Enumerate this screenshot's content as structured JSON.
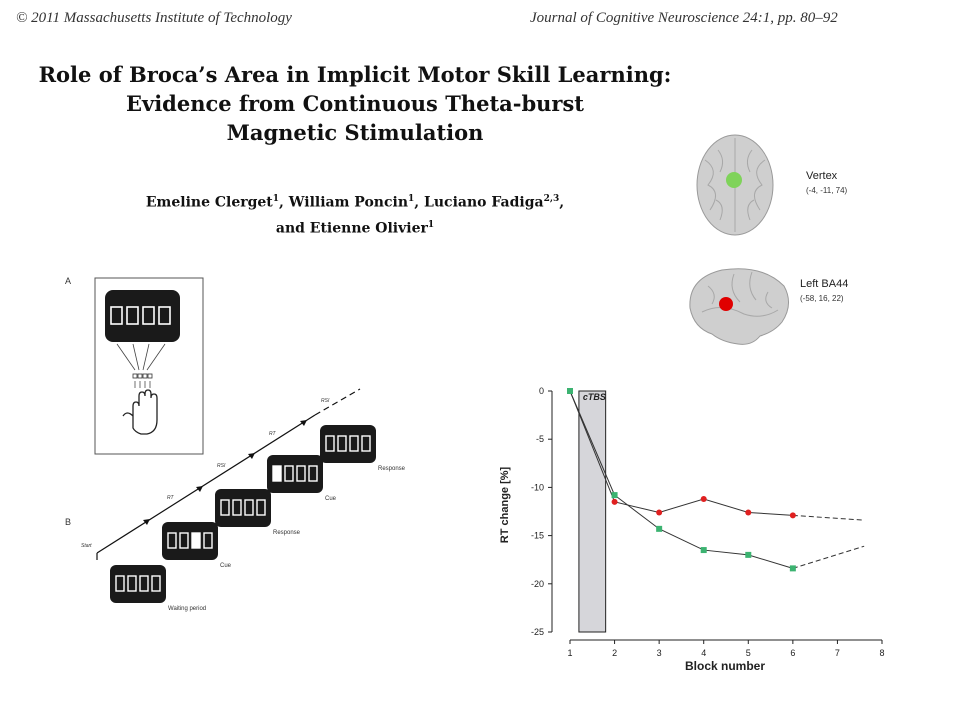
{
  "header": {
    "copyright": "© 2011 Massachusetts Institute of Technology",
    "journal": "Journal of Cognitive Neuroscience 24:1, pp. 80–92"
  },
  "title_lines": [
    "Role of Broca’s Area in Implicit Motor Skill Learning:",
    "Evidence from Continuous Theta-burst",
    "Magnetic Stimulation"
  ],
  "authors": {
    "line1": [
      {
        "name": "Emeline Clerget",
        "sup": "1",
        "sep": ", "
      },
      {
        "name": "William Poncin",
        "sup": "1",
        "sep": ", "
      },
      {
        "name": "Luciano Fadiga",
        "sup": "2,3",
        "sep": ","
      }
    ],
    "line2": [
      {
        "name": "and Etienne Olivier",
        "sup": "1",
        "sep": ""
      }
    ]
  },
  "figure_a": {
    "panel_label": "A"
  },
  "figure_b": {
    "panel_label": "B",
    "start_label": "Start",
    "arrow_labels": [
      "RT",
      "RSI",
      "RT",
      "RSI"
    ],
    "screens": [
      {
        "label": "Waiting period",
        "highlight": null
      },
      {
        "label": "Cue",
        "highlight": 2
      },
      {
        "label": "Response",
        "highlight": null
      },
      {
        "label": "Cue",
        "highlight": 0
      },
      {
        "label": "Response",
        "highlight": null
      }
    ]
  },
  "brain_sites": [
    {
      "name": "Vertex",
      "coords": "(-4, -11, 74)",
      "marker_color": "#7fd35a"
    },
    {
      "name": "Left BA44",
      "coords": "(-58, 16, 22)",
      "marker_color": "#e00000"
    }
  ],
  "chart_data": {
    "type": "line",
    "xlabel": "Block number",
    "ylabel": "RT change [%]",
    "ylim": [
      -25,
      0
    ],
    "xlim": [
      1,
      8
    ],
    "yticks": [
      0,
      -5,
      -10,
      -15,
      -20,
      -25
    ],
    "xticks": [
      1,
      2,
      3,
      4,
      5,
      6,
      7,
      8
    ],
    "shaded_label": "cTBS",
    "shaded_x_range": [
      1.2,
      1.8
    ],
    "grid": false,
    "series": [
      {
        "color": "#e02020",
        "marker": "circle",
        "x": [
          1,
          2,
          3,
          4,
          5,
          6
        ],
        "y": [
          0,
          -11.5,
          -12.6,
          -11.2,
          -12.6,
          -12.9
        ],
        "extrapolate_to": [
          7.6,
          -13.4
        ]
      },
      {
        "color": "#3cb371",
        "marker": "square",
        "x": [
          1,
          2,
          3,
          4,
          5,
          6
        ],
        "y": [
          0,
          -10.8,
          -14.3,
          -16.5,
          -17.0,
          -18.4
        ],
        "extrapolate_to": [
          7.6,
          -16.1
        ]
      }
    ]
  }
}
